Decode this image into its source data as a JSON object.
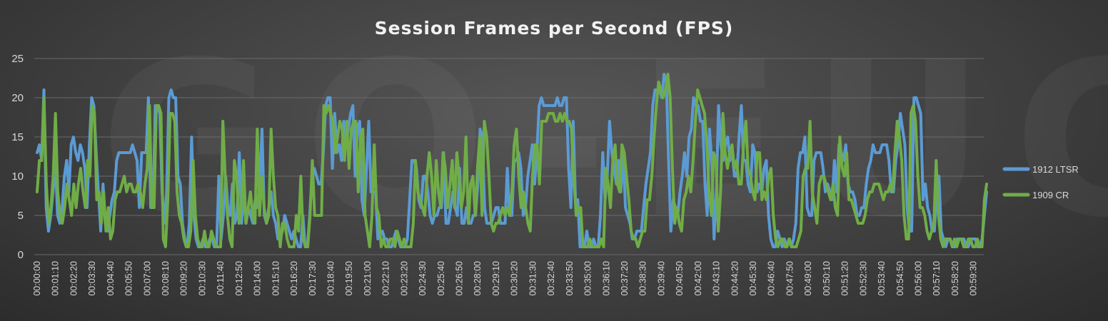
{
  "chart_data": {
    "type": "line",
    "title": "Session Frames per Second (FPS)",
    "ylim": [
      0,
      25
    ],
    "yticks": [
      0,
      5,
      10,
      15,
      20,
      25
    ],
    "grid": true,
    "legend_position": "right",
    "watermark": "GO-EUC",
    "x_tick_labels": [
      "00:00:00",
      "00:01:10",
      "00:02:20",
      "00:03:30",
      "00:04:40",
      "00:05:50",
      "00:07:00",
      "00:08:10",
      "00:09:20",
      "00:10:30",
      "00:11:40",
      "00:12:50",
      "00:14:00",
      "00:15:10",
      "00:16:20",
      "00:17:30",
      "00:18:40",
      "00:19:50",
      "00:21:00",
      "00:22:10",
      "00:23:20",
      "00:24:30",
      "00:25:40",
      "00:26:50",
      "00:28:00",
      "00:29:10",
      "00:30:20",
      "00:31:30",
      "00:32:40",
      "00:33:50",
      "00:35:00",
      "00:36:10",
      "00:37:20",
      "00:38:30",
      "00:39:40",
      "00:40:50",
      "00:42:00",
      "00:43:10",
      "00:44:20",
      "00:45:30",
      "00:46:40",
      "00:47:50",
      "00:49:00",
      "00:50:10",
      "00:51:20",
      "00:52:30",
      "00:53:40",
      "00:54:50",
      "00:56:00",
      "00:57:10",
      "00:58:20",
      "00:59:30"
    ],
    "x_start": "00:00:00",
    "x_end": "01:00:20",
    "series": [
      {
        "name": "1912 LTSR",
        "color": "#5b9bd5",
        "values": [
          13,
          14,
          12,
          21,
          6,
          3,
          5,
          8,
          12,
          5,
          4,
          6,
          10,
          12,
          8,
          14,
          15,
          13,
          12,
          14,
          13,
          11,
          6,
          14,
          20,
          19,
          13,
          8,
          3,
          9,
          4,
          3,
          5,
          7,
          8,
          12,
          13,
          13,
          13,
          13,
          13,
          13,
          14,
          13,
          12,
          6,
          13,
          13,
          13,
          20,
          6,
          6,
          19,
          19,
          18,
          8,
          4,
          8,
          20,
          21,
          20,
          20,
          10,
          9,
          4,
          2,
          1,
          4,
          15,
          5,
          2,
          1,
          1,
          2,
          1,
          1,
          2,
          2,
          1,
          1,
          10,
          2,
          5,
          10,
          6,
          5,
          9,
          4,
          5,
          13,
          4,
          8,
          4,
          6,
          5,
          4,
          7,
          6,
          9,
          16,
          5,
          4,
          6,
          8,
          5,
          4,
          2,
          2,
          3,
          5,
          4,
          3,
          2,
          3,
          2,
          1,
          1,
          5,
          1,
          1,
          5,
          10,
          11,
          10,
          9,
          9,
          13,
          19,
          20,
          20,
          11,
          18,
          13,
          14,
          12,
          17,
          14,
          16,
          18,
          19,
          10,
          16,
          17,
          7,
          5,
          11,
          17,
          8,
          8,
          8,
          2,
          3,
          3,
          2,
          2,
          1,
          1,
          2,
          3,
          2,
          1,
          1,
          1,
          2,
          7,
          12,
          12,
          11,
          7,
          6,
          10,
          10,
          8,
          5,
          4,
          5,
          5,
          6,
          6,
          13,
          4,
          4,
          6,
          8,
          6,
          5,
          11,
          4,
          4,
          6,
          4,
          4,
          5,
          5,
          9,
          16,
          15,
          6,
          4,
          4,
          4,
          5,
          6,
          6,
          4,
          4,
          4,
          11,
          5,
          5,
          12,
          12,
          13,
          11,
          5,
          6,
          10,
          12,
          14,
          9,
          13,
          19,
          20,
          19,
          19,
          19,
          19,
          19,
          19,
          20,
          19,
          19,
          20,
          20,
          11,
          6,
          17,
          7,
          7,
          1,
          1,
          1,
          3,
          1,
          1,
          2,
          1,
          1,
          5,
          13,
          7,
          10,
          17,
          13,
          11,
          9,
          12,
          8,
          13,
          6,
          5,
          4,
          2,
          2,
          3,
          3,
          3,
          6,
          9,
          11,
          13,
          19,
          21,
          21,
          21,
          20,
          23,
          22,
          12,
          3,
          7,
          6,
          5,
          8,
          10,
          13,
          10,
          15,
          16,
          20,
          19,
          19,
          17,
          17,
          9,
          5,
          16,
          12,
          2,
          8,
          19,
          14,
          12,
          14,
          15,
          12,
          13,
          10,
          10,
          15,
          19,
          12,
          12,
          9,
          8,
          14,
          13,
          8,
          9,
          8,
          11,
          12,
          5,
          2,
          1,
          1,
          3,
          2,
          1,
          2,
          1,
          2,
          1,
          2,
          4,
          11,
          13,
          13,
          15,
          6,
          5,
          5,
          12,
          13,
          13,
          13,
          11,
          8,
          9,
          8,
          7,
          12,
          8,
          14,
          13,
          12,
          14,
          9,
          8,
          8,
          7,
          5,
          5,
          6,
          6,
          9,
          11,
          12,
          14,
          13,
          13,
          13,
          14,
          14,
          14,
          12,
          8,
          8,
          12,
          14,
          18,
          16,
          14,
          6,
          3,
          3,
          20,
          20,
          19,
          18,
          7,
          9,
          6,
          5,
          3,
          3,
          8,
          10,
          3,
          2,
          1,
          2,
          2,
          1,
          1,
          2,
          2,
          2,
          2,
          1,
          1,
          2,
          2,
          2,
          1,
          1,
          2,
          5,
          8
        ]
      },
      {
        "name": "1909 CR",
        "color": "#70ad47",
        "values": [
          8,
          12,
          12,
          20,
          9,
          4,
          6,
          10,
          18,
          8,
          5,
          4,
          6,
          9,
          7,
          5,
          9,
          6,
          9,
          11,
          8,
          6,
          12,
          10,
          19,
          18,
          7,
          8,
          4,
          8,
          3,
          6,
          2,
          3,
          7,
          8,
          8,
          9,
          10,
          8,
          9,
          9,
          8,
          8,
          9,
          8,
          6,
          9,
          11,
          19,
          6,
          6,
          19,
          19,
          18,
          2,
          1,
          7,
          18,
          18,
          17,
          8,
          5,
          4,
          2,
          1,
          1,
          3,
          12,
          5,
          2,
          1,
          1,
          3,
          1,
          1,
          3,
          2,
          1,
          1,
          1,
          17,
          10,
          5,
          2,
          1,
          12,
          10,
          4,
          6,
          12,
          4,
          6,
          8,
          5,
          4,
          16,
          5,
          10,
          6,
          4,
          5,
          16,
          10,
          6,
          5,
          1,
          4,
          4,
          2,
          1,
          1,
          1,
          5,
          3,
          10,
          2,
          1,
          1,
          5,
          12,
          5,
          5,
          5,
          5,
          19,
          18,
          19,
          18,
          17,
          13,
          15,
          17,
          16,
          12,
          17,
          11,
          16,
          17,
          17,
          8,
          15,
          16,
          5,
          3,
          1,
          5,
          14,
          6,
          5,
          1,
          2,
          1,
          1,
          2,
          2,
          1,
          3,
          2,
          1,
          2,
          1,
          1,
          1,
          4,
          12,
          8,
          7,
          6,
          5,
          10,
          13,
          10,
          5,
          12,
          8,
          6,
          13,
          11,
          6,
          9,
          12,
          6,
          13,
          10,
          6,
          8,
          15,
          4,
          9,
          10,
          5,
          11,
          15,
          5,
          17,
          15,
          10,
          4,
          3,
          4,
          4,
          5,
          6,
          5,
          6,
          5,
          8,
          14,
          16,
          10,
          6,
          8,
          6,
          4,
          3,
          10,
          14,
          14,
          9,
          17,
          17,
          17,
          18,
          18,
          18,
          17,
          17,
          18,
          17,
          18,
          17,
          17,
          16,
          10,
          5,
          6,
          6,
          1,
          1,
          1,
          2,
          1,
          1,
          1,
          1,
          2,
          1,
          11,
          9,
          6,
          12,
          14,
          9,
          8,
          14,
          13,
          10,
          7,
          3,
          2,
          2,
          1,
          2,
          3,
          3,
          7,
          7,
          10,
          15,
          19,
          22,
          21,
          20,
          21,
          23,
          20,
          11,
          4,
          6,
          4,
          3,
          7,
          8,
          10,
          8,
          12,
          17,
          21,
          20,
          19,
          18,
          14,
          8,
          5,
          13,
          12,
          3,
          8,
          18,
          13,
          11,
          13,
          14,
          11,
          12,
          9,
          9,
          14,
          17,
          11,
          10,
          8,
          7,
          13,
          13,
          7,
          8,
          7,
          10,
          11,
          5,
          2,
          1,
          2,
          2,
          1,
          1,
          2,
          1,
          1,
          1,
          2,
          3,
          10,
          11,
          11,
          17,
          8,
          6,
          4,
          9,
          10,
          10,
          9,
          8,
          7,
          9,
          6,
          5,
          15,
          11,
          10,
          13,
          7,
          7,
          6,
          5,
          4,
          4,
          4,
          5,
          7,
          8,
          8,
          9,
          9,
          9,
          8,
          7,
          8,
          8,
          9,
          8,
          13,
          17,
          15,
          12,
          5,
          2,
          2,
          18,
          19,
          17,
          10,
          6,
          6,
          5,
          3,
          2,
          3,
          4,
          12,
          5,
          2,
          1,
          2,
          2,
          2,
          1,
          2,
          1,
          2,
          2,
          1,
          1,
          2,
          2,
          1,
          1,
          2,
          1,
          1,
          7,
          9
        ]
      }
    ]
  }
}
